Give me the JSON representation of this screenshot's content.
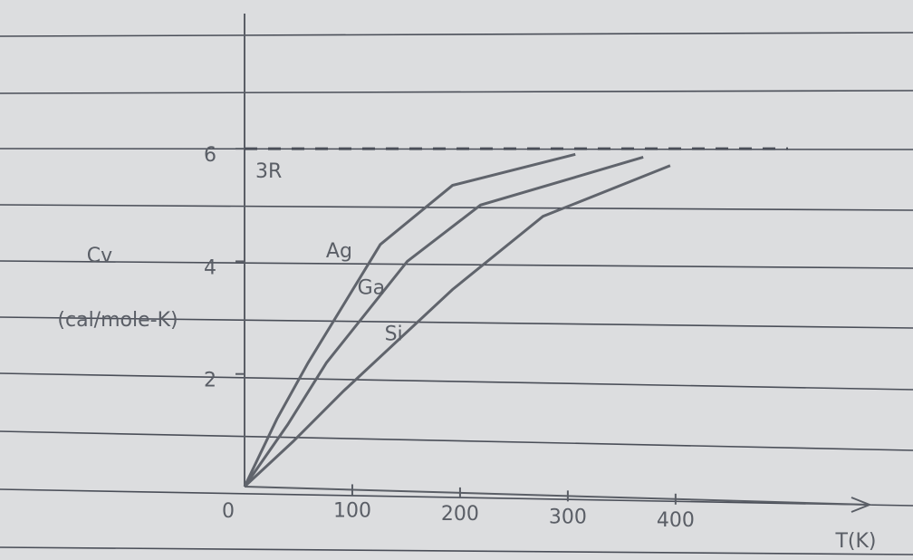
{
  "chart_data": {
    "type": "line",
    "ylabel": "Cv",
    "ylabel_unit": "(cal/mole-K)",
    "xlabel": "T(K)",
    "xlim": [
      0,
      580
    ],
    "ylim": [
      0,
      8.4
    ],
    "xticks": [
      0,
      100,
      200,
      300,
      400
    ],
    "yticks": [
      2,
      4,
      6
    ],
    "reference_line": {
      "value": 6,
      "label": "3R"
    },
    "series": [
      {
        "name": "Ag",
        "color": "#60646c",
        "x": [
          0,
          30,
          59,
          126,
          193,
          307
        ],
        "values": [
          0,
          1.2,
          2.2,
          4.3,
          5.35,
          5.9
        ]
      },
      {
        "name": "Ga",
        "color": "#60646c",
        "x": [
          0,
          40,
          76,
          151,
          219,
          370
        ],
        "values": [
          0,
          1.1,
          2.2,
          4.0,
          5.0,
          5.85
        ]
      },
      {
        "name": "Si",
        "color": "#60646c",
        "x": [
          0,
          45,
          92,
          193,
          277,
          395
        ],
        "values": [
          0,
          0.8,
          1.7,
          3.5,
          4.8,
          5.7
        ]
      }
    ]
  }
}
